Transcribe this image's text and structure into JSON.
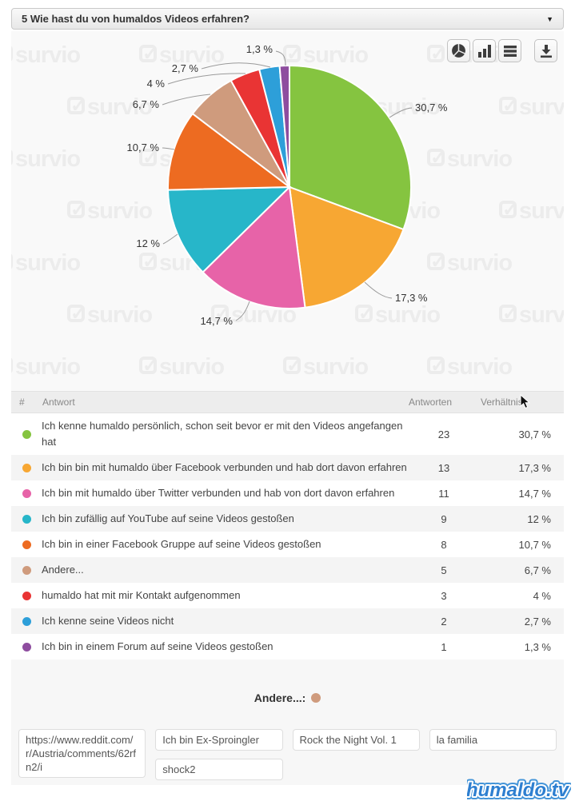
{
  "panel": {
    "title": "5 Wie hast du von humaldos Videos erfahren?"
  },
  "toolbar": {
    "buttons": [
      {
        "icon": "pie-chart-icon"
      },
      {
        "icon": "bar-chart-icon"
      },
      {
        "icon": "list-view-icon"
      },
      {
        "icon": "download-icon"
      }
    ]
  },
  "watermark": {
    "text": "survio"
  },
  "brand_watermark": {
    "text": "humaldo.tv"
  },
  "chart_data": {
    "type": "pie",
    "title": "5 Wie hast du von humaldos Videos erfahren?",
    "unit": "%",
    "legend_position": "table-below",
    "slices": [
      {
        "label": "Ich kenne humaldo persönlich, schon seit bevor er mit den Videos angefangen hat",
        "value": 23,
        "percent": 30.7,
        "percent_label": "30,7 %",
        "color": "#85c440"
      },
      {
        "label": "Ich bin bin mit humaldo über Facebook verbunden und hab dort davon erfahren",
        "value": 13,
        "percent": 17.3,
        "percent_label": "17,3 %",
        "color": "#f7a733"
      },
      {
        "label": "Ich bin mit humaldo über Twitter verbunden und hab von dort davon erfahren",
        "value": 11,
        "percent": 14.7,
        "percent_label": "14,7 %",
        "color": "#e763a8"
      },
      {
        "label": "Ich bin zufällig auf YouTube auf seine Videos gestoßen",
        "value": 9,
        "percent": 12,
        "percent_label": "12 %",
        "color": "#27b6c9"
      },
      {
        "label": "Ich bin in einer Facebook Gruppe auf seine Videos gestoßen",
        "value": 8,
        "percent": 10.7,
        "percent_label": "10,7 %",
        "color": "#ed6b21"
      },
      {
        "label": "Andere...",
        "value": 5,
        "percent": 6.7,
        "percent_label": "6,7 %",
        "color": "#cf9b7d"
      },
      {
        "label": "humaldo hat mit mir Kontakt aufgenommen",
        "value": 3,
        "percent": 4,
        "percent_label": "4 %",
        "color": "#e93434"
      },
      {
        "label": "Ich kenne seine Videos nicht",
        "value": 2,
        "percent": 2.7,
        "percent_label": "2,7 %",
        "color": "#2d9fd9"
      },
      {
        "label": "Ich bin in einem Forum auf seine Videos gestoßen",
        "value": 1,
        "percent": 1.3,
        "percent_label": "1,3 %",
        "color": "#8e4d9f"
      }
    ]
  },
  "table": {
    "headers": [
      "#",
      "Antwort",
      "Antworten",
      "Verhältnis"
    ]
  },
  "others": {
    "heading": "Andere...:",
    "dot_color": "#cf9b7d",
    "answers": [
      "https://www.reddit.com/r/Austria/comments/62rfn2/i",
      "Ich bin Ex-Sproingler",
      "shock2",
      "Rock the Night Vol. 1",
      "la familia"
    ]
  }
}
